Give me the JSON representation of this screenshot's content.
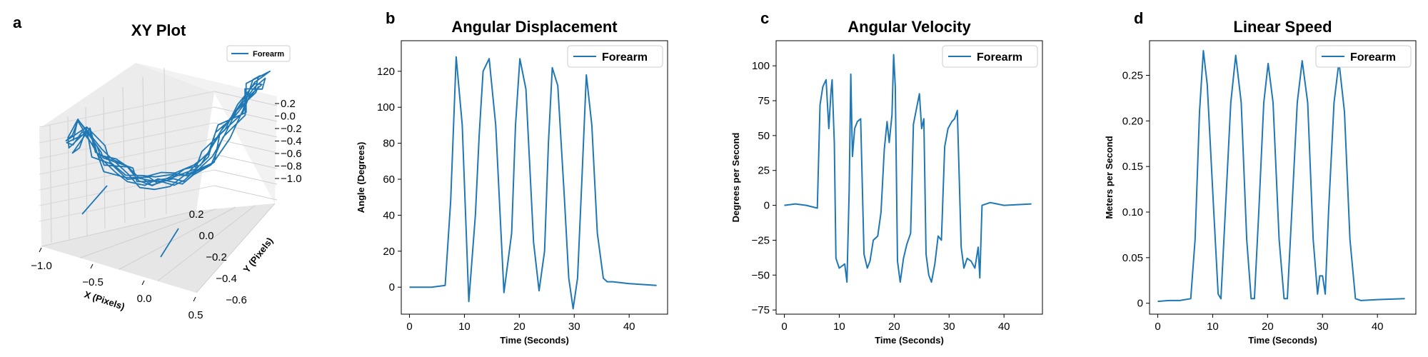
{
  "chart_data": [
    {
      "panel": "a",
      "type": "line3d",
      "title": "XY Plot",
      "xlabel": "X (Pixels)",
      "ylabel": "Y (Pixels)",
      "zlabel": "",
      "xticks": [
        "−1.0",
        "−0.5",
        "0.0",
        "0.5"
      ],
      "yticks": [
        "−0.6",
        "−0.4",
        "−0.2",
        "0.0",
        "0.2"
      ],
      "zticks": [
        "0.2",
        "0.0",
        "−0.2",
        "−0.4",
        "−0.6",
        "−0.8",
        "−1.0"
      ],
      "xlim": [
        -1.1,
        0.9
      ],
      "ylim": [
        -0.7,
        0.3
      ],
      "zlim": [
        -1.1,
        0.25
      ],
      "legend": "upper right",
      "series": [
        {
          "name": "Forearm",
          "color": "#1f77b4"
        }
      ],
      "trajectory_note_x": [
        -0.95,
        -0.85,
        -0.72,
        -0.6,
        -0.45,
        -0.3,
        -0.15,
        0.0,
        0.15,
        0.3,
        0.45,
        0.6,
        0.72,
        0.82
      ],
      "trajectory_note_z": [
        -0.55,
        -0.35,
        -0.62,
        -0.78,
        -0.88,
        -0.95,
        -1.0,
        -0.98,
        -0.9,
        -0.72,
        -0.45,
        -0.15,
        0.1,
        0.2
      ]
    },
    {
      "panel": "b",
      "type": "line",
      "title": "Angular Displacement",
      "xlabel": "Time (Seconds)",
      "ylabel": "Angle (Degrees)",
      "xlim": [
        -1.5,
        47
      ],
      "ylim": [
        -15,
        137
      ],
      "xticks": [
        0,
        10,
        20,
        30,
        40
      ],
      "yticks": [
        0,
        20,
        40,
        60,
        80,
        100,
        120
      ],
      "legend": "upper right",
      "series": [
        {
          "name": "Forearm",
          "color": "#1f77b4",
          "x": [
            0,
            2,
            4,
            6.5,
            7.5,
            8.5,
            9.6,
            10.8,
            12.0,
            12.7,
            13.4,
            14.5,
            15.7,
            17.2,
            18.6,
            19.3,
            20.1,
            21.2,
            22.6,
            23.6,
            24.6,
            25.3,
            26.0,
            27.0,
            28.2,
            29.0,
            29.8,
            30.6,
            31.4,
            32.2,
            33.2,
            34.2,
            35.3,
            36.0,
            37.0,
            40.0,
            45.0
          ],
          "y": [
            0,
            0,
            0,
            1,
            48,
            128,
            90,
            -8,
            40,
            85,
            120,
            127,
            90,
            -3,
            30,
            90,
            127,
            110,
            25,
            -2,
            20,
            80,
            122,
            112,
            50,
            5,
            -12,
            5,
            60,
            118,
            90,
            30,
            5,
            3,
            3,
            2,
            1
          ]
        }
      ]
    },
    {
      "panel": "c",
      "type": "line",
      "title": "Angular Velocity",
      "xlabel": "Time (Seconds)",
      "ylabel": "Degrees per Second",
      "xlim": [
        -1.5,
        47
      ],
      "ylim": [
        -78,
        118
      ],
      "xticks": [
        0,
        10,
        20,
        30,
        40
      ],
      "yticks": [
        -75,
        -50,
        -25,
        0,
        25,
        50,
        75,
        100
      ],
      "legend": "upper right",
      "series": [
        {
          "name": "Forearm",
          "color": "#1f77b4",
          "x": [
            0,
            2,
            4,
            6.0,
            6.5,
            7.0,
            7.6,
            8.1,
            8.5,
            8.7,
            9.1,
            9.4,
            10.0,
            11.0,
            11.4,
            11.8,
            12.1,
            12.4,
            12.8,
            13.3,
            13.9,
            14.5,
            15.1,
            15.6,
            16.2,
            17.0,
            17.6,
            18.2,
            18.7,
            19.1,
            19.6,
            19.9,
            20.2,
            20.6,
            21.1,
            21.7,
            22.3,
            23.0,
            23.5,
            24.0,
            24.6,
            25.0,
            25.4,
            25.8,
            26.3,
            26.8,
            27.4,
            28.0,
            28.6,
            29.2,
            29.8,
            30.5,
            31.0,
            31.5,
            32.2,
            32.7,
            33.3,
            34.0,
            34.7,
            35.3,
            35.6,
            36.0,
            37.5,
            40,
            45
          ],
          "y": [
            0,
            1,
            0,
            -2,
            72,
            85,
            90,
            55,
            82,
            90,
            45,
            -38,
            -45,
            -42,
            -55,
            10,
            94,
            35,
            55,
            60,
            62,
            -35,
            -45,
            -40,
            -25,
            -22,
            -5,
            40,
            60,
            45,
            65,
            108,
            85,
            -40,
            -55,
            -38,
            -28,
            -20,
            58,
            68,
            80,
            55,
            62,
            -35,
            -50,
            -55,
            -42,
            -22,
            -25,
            42,
            55,
            60,
            62,
            68,
            -30,
            -45,
            -38,
            -40,
            -45,
            -30,
            -52,
            0,
            2,
            0,
            1
          ]
        }
      ]
    },
    {
      "panel": "d",
      "type": "line",
      "title": "Linear Speed",
      "xlabel": "Time (Seconds)",
      "ylabel": "Meters per Second",
      "xlim": [
        -1.5,
        47
      ],
      "ylim": [
        -0.012,
        0.288
      ],
      "xticks": [
        0,
        10,
        20,
        30,
        40
      ],
      "yticks": [
        0.0,
        0.05,
        0.1,
        0.15,
        0.2,
        0.25
      ],
      "legend": "upper right",
      "series": [
        {
          "name": "Forearm",
          "color": "#1f77b4",
          "x": [
            0,
            2,
            4,
            6.0,
            6.8,
            7.6,
            8.3,
            9.0,
            10.2,
            11.0,
            11.5,
            12.3,
            13.3,
            14.2,
            15.2,
            16.2,
            17.0,
            17.6,
            18.4,
            19.3,
            20.1,
            21.0,
            22.1,
            23.0,
            23.6,
            24.4,
            25.4,
            26.3,
            27.3,
            28.3,
            29.1,
            29.5,
            30.0,
            30.5,
            31.1,
            32.1,
            33.0,
            34.0,
            35.0,
            36.0,
            37.0,
            40.0,
            45.0
          ],
          "y": [
            0.002,
            0.003,
            0.003,
            0.005,
            0.07,
            0.21,
            0.277,
            0.24,
            0.1,
            0.01,
            0.005,
            0.1,
            0.22,
            0.272,
            0.22,
            0.07,
            0.005,
            0.005,
            0.1,
            0.22,
            0.263,
            0.22,
            0.07,
            0.005,
            0.005,
            0.1,
            0.22,
            0.266,
            0.22,
            0.07,
            0.01,
            0.03,
            0.03,
            0.01,
            0.1,
            0.22,
            0.265,
            0.21,
            0.07,
            0.005,
            0.003,
            0.004,
            0.005
          ]
        }
      ]
    }
  ]
}
